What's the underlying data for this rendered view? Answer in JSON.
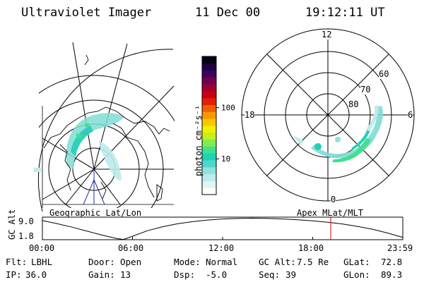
{
  "header": {
    "instrument": "Ultraviolet Imager",
    "date": "11 Dec 00",
    "time": "19:12:11 UT"
  },
  "maps": {
    "geographic_label": "Geographic Lat/Lon",
    "apex_label": "Apex MLat/MLT"
  },
  "colorbar": {
    "unit_label": "photon cm⁻²s⁻¹",
    "ticks": [
      {
        "value": 100,
        "label": "100"
      },
      {
        "value": 10,
        "label": "10"
      }
    ],
    "colors": [
      "#ffffff",
      "#e0f4f4",
      "#bfeaea",
      "#8ee2de",
      "#4cd8cc",
      "#20d2b4",
      "#40e090",
      "#80ec50",
      "#c0f020",
      "#f0f000",
      "#f8c800",
      "#f89800",
      "#f06000",
      "#e02000",
      "#c80010",
      "#a00030",
      "#700050",
      "#400060",
      "#200040",
      "#080010"
    ]
  },
  "polar_plot": {
    "mlt_labels": {
      "top": "12",
      "left": "18",
      "right": "6",
      "bottom": "0"
    },
    "lat_labels": [
      "60",
      "70",
      "80"
    ]
  },
  "altitude_plot": {
    "ylabel": "GC Alt",
    "yticks": [
      "9.0",
      "1.8"
    ],
    "xticks": [
      "00:00",
      "06:00",
      "12:00",
      "18:00",
      "23:59"
    ],
    "ymin": 1.0,
    "ymax": 9.5,
    "current_time_hours": 19.2,
    "marker_color": "#d00000",
    "series": [
      {
        "t": 0.0,
        "alt": 8.2
      },
      {
        "t": 1.0,
        "alt": 7.0
      },
      {
        "t": 2.0,
        "alt": 5.7
      },
      {
        "t": 3.0,
        "alt": 4.2
      },
      {
        "t": 4.0,
        "alt": 2.7
      },
      {
        "t": 5.0,
        "alt": 1.4
      },
      {
        "t": 5.4,
        "alt": 1.1
      },
      {
        "t": 6.0,
        "alt": 2.3
      },
      {
        "t": 7.0,
        "alt": 4.4
      },
      {
        "t": 8.0,
        "alt": 5.9
      },
      {
        "t": 9.0,
        "alt": 7.0
      },
      {
        "t": 10.0,
        "alt": 7.8
      },
      {
        "t": 11.0,
        "alt": 8.4
      },
      {
        "t": 12.0,
        "alt": 8.8
      },
      {
        "t": 13.0,
        "alt": 9.0
      },
      {
        "t": 14.0,
        "alt": 9.1
      },
      {
        "t": 15.0,
        "alt": 9.0
      },
      {
        "t": 16.0,
        "alt": 8.8
      },
      {
        "t": 17.0,
        "alt": 8.5
      },
      {
        "t": 18.0,
        "alt": 8.1
      },
      {
        "t": 19.0,
        "alt": 7.6
      },
      {
        "t": 20.0,
        "alt": 6.9
      },
      {
        "t": 21.0,
        "alt": 6.0
      },
      {
        "t": 22.0,
        "alt": 4.9
      },
      {
        "t": 23.0,
        "alt": 3.5
      },
      {
        "t": 23.99,
        "alt": 1.9
      }
    ]
  },
  "status": {
    "flt_label": "Flt:",
    "flt_value": "LBHL",
    "door_label": "Door:",
    "door_value": "Open",
    "mode_label": "Mode:",
    "mode_value": "Normal",
    "gcalt_label": "GC Alt:",
    "gcalt_value": "7.5 Re",
    "glat_label": "GLat:",
    "glat_value": "72.8",
    "ip_label": "IP:",
    "ip_value": "36.0",
    "gain_label": "Gain:",
    "gain_value": "13",
    "dsp_label": "Dsp:",
    "dsp_value": "-5.0",
    "seq_label": "Seq:",
    "seq_value": "39",
    "glon_label": "GLon:",
    "glon_value": "89.3"
  }
}
